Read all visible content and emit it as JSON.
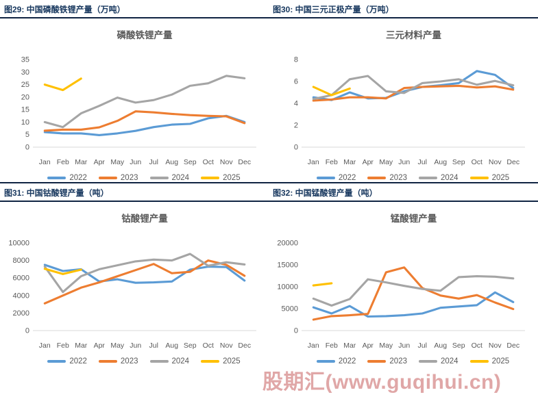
{
  "page": {
    "watermark": "股期汇(www.guqihui.cn)"
  },
  "colors": {
    "blue_2022": "#5B9BD5",
    "orange_2023": "#ED7D31",
    "gray_2024": "#A5A5A5",
    "yellow_2025": "#FFC000",
    "header_navy": "#17375E",
    "axis_gray": "#595959",
    "rule_dark": "#0F2342",
    "watermark_red": "#C14F4F"
  },
  "sections": [
    {
      "headers": [
        "图29: 中国磷酸铁锂产量（万吨）",
        "图30: 中国三元正极产量（万吨）"
      ]
    },
    {
      "headers": [
        "图31: 中国钴酸锂产量（吨）",
        "图32: 中国锰酸锂产量（吨）"
      ]
    }
  ],
  "chart_data": [
    {
      "type": "line",
      "title": "磷酸铁锂产量",
      "unit": "万吨",
      "x": [
        "Jan",
        "Feb",
        "Mar",
        "Apr",
        "May",
        "Jun",
        "Jul",
        "Aug",
        "Sep",
        "Oct",
        "Nov",
        "Dec"
      ],
      "ylim": [
        0,
        35
      ],
      "yticks": [
        0,
        5,
        10,
        15,
        20,
        25,
        30,
        35
      ],
      "grid": false,
      "legend_position": "bottom",
      "series": [
        {
          "name": "2022",
          "color": "#5B9BD5",
          "values": [
            6.0,
            5.5,
            5.5,
            4.8,
            5.5,
            6.5,
            8.0,
            9.0,
            9.3,
            11.5,
            12.5,
            10.0
          ]
        },
        {
          "name": "2023",
          "color": "#ED7D31",
          "values": [
            6.6,
            7.0,
            7.0,
            7.9,
            10.5,
            14.3,
            13.9,
            13.3,
            12.8,
            12.5,
            12.3,
            9.6
          ]
        },
        {
          "name": "2024",
          "color": "#A5A5A5",
          "values": [
            10.0,
            8.0,
            13.5,
            16.5,
            19.8,
            17.8,
            18.8,
            21.0,
            24.5,
            25.5,
            28.5,
            27.5
          ]
        },
        {
          "name": "2025",
          "color": "#FFC000",
          "values": [
            25.0,
            22.8,
            27.4
          ]
        }
      ]
    },
    {
      "type": "line",
      "title": "三元材料产量",
      "unit": "万吨",
      "x": [
        "Jan",
        "Feb",
        "Mar",
        "Apr",
        "May",
        "Jun",
        "Jul",
        "Aug",
        "Sep",
        "Oct",
        "Nov",
        "Dec"
      ],
      "ylim": [
        0,
        8
      ],
      "yticks": [
        0,
        2,
        4,
        6,
        8
      ],
      "grid": false,
      "legend_position": "bottom",
      "series": [
        {
          "name": "2022",
          "color": "#5B9BD5",
          "values": [
            4.55,
            4.3,
            5.0,
            4.45,
            4.5,
            5.1,
            5.5,
            5.65,
            5.85,
            6.95,
            6.6,
            5.4
          ]
        },
        {
          "name": "2023",
          "color": "#ED7D31",
          "values": [
            4.25,
            4.35,
            4.55,
            4.55,
            4.45,
            5.4,
            5.5,
            5.55,
            5.6,
            5.45,
            5.55,
            5.25
          ]
        },
        {
          "name": "2024",
          "color": "#A5A5A5",
          "values": [
            4.4,
            4.75,
            6.2,
            6.5,
            5.1,
            4.95,
            5.85,
            6.0,
            6.2,
            5.7,
            6.05,
            5.65
          ]
        },
        {
          "name": "2025",
          "color": "#FFC000",
          "values": [
            5.5,
            4.75,
            5.35
          ]
        }
      ]
    },
    {
      "type": "line",
      "title": "钴酸锂产量",
      "unit": "吨",
      "x": [
        "Jan",
        "Feb",
        "Mar",
        "Apr",
        "May",
        "Jun",
        "Jul",
        "Aug",
        "Sep",
        "Oct",
        "Nov",
        "Dec"
      ],
      "ylim": [
        0,
        10000
      ],
      "yticks": [
        0,
        2000,
        4000,
        6000,
        8000,
        10000
      ],
      "grid": false,
      "legend_position": "bottom",
      "series": [
        {
          "name": "2022",
          "color": "#5B9BD5",
          "values": [
            7500,
            6800,
            7000,
            5600,
            5850,
            5450,
            5500,
            5600,
            6950,
            7300,
            7250,
            5700
          ]
        },
        {
          "name": "2023",
          "color": "#ED7D31",
          "values": [
            3100,
            4000,
            4900,
            5500,
            6200,
            6900,
            7600,
            6550,
            6700,
            8000,
            7500,
            6250
          ]
        },
        {
          "name": "2024",
          "color": "#A5A5A5",
          "values": [
            7300,
            4400,
            6200,
            7000,
            7450,
            7900,
            8100,
            8000,
            8750,
            7400,
            7800,
            7550
          ]
        },
        {
          "name": "2025",
          "color": "#FFC000",
          "values": [
            7050,
            6450,
            6950
          ]
        }
      ]
    },
    {
      "type": "line",
      "title": "锰酸锂产量",
      "unit": "吨",
      "x": [
        "Jan",
        "Feb",
        "Mar",
        "Apr",
        "May",
        "Jun",
        "Jul",
        "Aug",
        "Sep",
        "Oct",
        "Nov",
        "Dec"
      ],
      "ylim": [
        0,
        20000
      ],
      "yticks": [
        0,
        5000,
        10000,
        15000,
        20000
      ],
      "grid": false,
      "legend_position": "bottom",
      "series": [
        {
          "name": "2022",
          "color": "#5B9BD5",
          "values": [
            5300,
            3900,
            5600,
            3200,
            3300,
            3500,
            3900,
            5200,
            5500,
            5800,
            8700,
            6500
          ]
        },
        {
          "name": "2023",
          "color": "#ED7D31",
          "values": [
            2500,
            3300,
            3500,
            3800,
            13300,
            14400,
            9700,
            8000,
            7300,
            8100,
            6400,
            4900
          ]
        },
        {
          "name": "2024",
          "color": "#A5A5A5",
          "values": [
            7300,
            5700,
            7200,
            11700,
            11000,
            10200,
            9500,
            9100,
            12200,
            12400,
            12300,
            11900
          ]
        },
        {
          "name": "2025",
          "color": "#FFC000",
          "values": [
            10300,
            10800
          ]
        }
      ]
    }
  ]
}
